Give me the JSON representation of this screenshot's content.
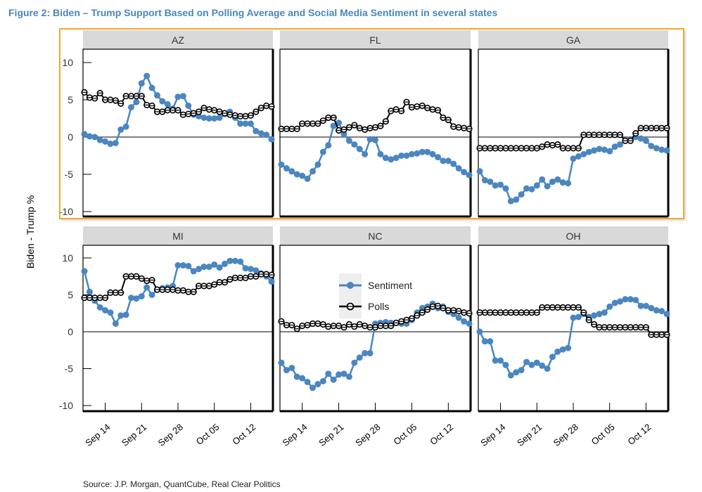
{
  "title": "Figure 2: Biden – Trump Support Based on Polling Average and Social Media Sentiment in several states",
  "source": "Source: J.P. Morgan, QuantCube, Real Clear Politics",
  "chart_data": {
    "type": "line",
    "title": "Figure 2: Biden – Trump Support Based on Polling Average and Social Media Sentiment in several states",
    "xlabel": "",
    "ylabel": "Biden - Trump %",
    "ylim": [
      -10,
      11
    ],
    "yticks": [
      "10",
      "5",
      "0",
      "-5",
      "-10"
    ],
    "ytick_values": [
      10,
      5,
      0,
      -5,
      -10
    ],
    "xtick_labels": [
      "Sep 14",
      "Sep 21",
      "Sep 28",
      "Oct 05",
      "Oct 12"
    ],
    "xtick_days": [
      4,
      11,
      18,
      25,
      32
    ],
    "x_day_range": [
      0,
      36
    ],
    "legend": {
      "placement": "NC panel upper-left",
      "entries": [
        "Sentiment",
        "Polls"
      ]
    },
    "colors": {
      "Sentiment": "#4a86c0",
      "Polls": "#000000",
      "highlight": "#f0a92a",
      "strip": "#d9d9d9",
      "title": "#4a86b8"
    },
    "panels": [
      {
        "name": "AZ",
        "series": [
          {
            "name": "Sentiment",
            "values": [
              0.4,
              0.1,
              0,
              -0.4,
              -0.6,
              -0.9,
              -0.8,
              1.0,
              1.4,
              4,
              4.7,
              7.2,
              8.2,
              6.6,
              5.6,
              4.8,
              4.4,
              3.8,
              5.4,
              5.5,
              4.2,
              3.0,
              2.8,
              2.6,
              2.5,
              2.5,
              2.6,
              3.1,
              3.4,
              2.6,
              1.8,
              1.8,
              1.8,
              0.8,
              0.5,
              0.3,
              -0.3
            ]
          },
          {
            "name": "Polls",
            "values": [
              6,
              5.3,
              5.2,
              5.9,
              5.0,
              5.0,
              4.9,
              4.5,
              5.5,
              5.5,
              5.5,
              5.5,
              4.3,
              4.2,
              3.4,
              3.4,
              3.6,
              3.6,
              3.6,
              3.0,
              3.1,
              3.2,
              3.4,
              3.9,
              3.7,
              3.6,
              3.4,
              3.2,
              3.0,
              2.9,
              2.8,
              2.8,
              2.9,
              3.4,
              3.9,
              4.2,
              4.1
            ]
          }
        ]
      },
      {
        "name": "FL",
        "series": [
          {
            "name": "Sentiment",
            "values": [
              -3.7,
              -4.2,
              -4.6,
              -5.0,
              -5.2,
              -5.6,
              -4.6,
              -3.7,
              -2.0,
              -1.1,
              1.5,
              1.9,
              0.4,
              -0.5,
              -1.0,
              -1.6,
              -2.3,
              -0.3,
              -0.4,
              -2.3,
              -2.8,
              -3.0,
              -2.8,
              -2.5,
              -2.5,
              -2.3,
              -2.2,
              -2.0,
              -2.0,
              -2.3,
              -2.7,
              -3.2,
              -3.2,
              -3.6,
              -4.2,
              -4.7,
              -5.1
            ]
          },
          {
            "name": "Polls",
            "values": [
              1.1,
              1.1,
              1.1,
              1.1,
              1.8,
              1.8,
              1.8,
              1.8,
              2.2,
              2.6,
              2.6,
              0.9,
              1.0,
              1.3,
              1.6,
              1.2,
              1.0,
              1.2,
              1.3,
              1.5,
              2.1,
              3.5,
              3.7,
              3.5,
              4.7,
              4.0,
              4.1,
              4.2,
              3.9,
              3.7,
              3.6,
              2.6,
              2.3,
              1.4,
              1.3,
              1.2,
              1.1
            ]
          }
        ]
      },
      {
        "name": "GA",
        "series": [
          {
            "name": "Sentiment",
            "values": [
              -4.6,
              -5.8,
              -6.0,
              -6.5,
              -6.4,
              -6.9,
              -8.6,
              -8.4,
              -7.7,
              -6.9,
              -7.0,
              -6.5,
              -5.7,
              -6.6,
              -6.0,
              -5.7,
              -6.1,
              -6.2,
              -2.9,
              -2.6,
              -2.3,
              -2.0,
              -1.8,
              -1.6,
              -1.7,
              -1.9,
              -1.3,
              -1.0,
              -0.5,
              -0.3,
              0.0,
              -0.2,
              -0.5,
              -1.2,
              -1.5,
              -1.7,
              -1.8
            ]
          },
          {
            "name": "Polls",
            "values": [
              -1.5,
              -1.5,
              -1.5,
              -1.5,
              -1.5,
              -1.5,
              -1.5,
              -1.5,
              -1.5,
              -1.5,
              -1.5,
              -1.5,
              -1.3,
              -1.0,
              -1.1,
              -1.0,
              -1.5,
              -1.5,
              -1.5,
              -1.5,
              0.3,
              0.3,
              0.3,
              0.3,
              0.3,
              0.3,
              0.3,
              0.3,
              -0.5,
              -0.5,
              0.5,
              1.2,
              1.2,
              1.2,
              1.2,
              1.2,
              1.2
            ]
          }
        ]
      },
      {
        "name": "MI",
        "series": [
          {
            "name": "Sentiment",
            "values": [
              8.2,
              5.4,
              4.2,
              3.3,
              2.9,
              2.6,
              1.1,
              2.2,
              2.3,
              4.6,
              4.5,
              4.8,
              6.0,
              5.0,
              5.7,
              5.9,
              6.0,
              6.2,
              9.0,
              9.0,
              8.9,
              8.2,
              8.5,
              8.8,
              8.8,
              9.1,
              8.7,
              9.2,
              9.6,
              9.6,
              9.5,
              8.6,
              8.5,
              8.3,
              7.9,
              7.5,
              6.8
            ]
          },
          {
            "name": "Polls",
            "values": [
              4.6,
              4.6,
              4.6,
              4.6,
              4.6,
              5.3,
              5.3,
              5.3,
              7.5,
              7.5,
              7.5,
              7.2,
              6.9,
              7.0,
              5.7,
              5.7,
              5.7,
              5.7,
              5.6,
              5.6,
              5.4,
              5.4,
              6.2,
              6.2,
              6.2,
              6.4,
              6.7,
              6.7,
              7.1,
              7.3,
              7.3,
              7.3,
              7.5,
              7.5,
              7.8,
              7.8,
              7.7
            ]
          }
        ]
      },
      {
        "name": "NC",
        "series": [
          {
            "name": "Sentiment",
            "values": [
              -4.2,
              -5.2,
              -4.9,
              -6.1,
              -6.3,
              -6.8,
              -7.6,
              -7.1,
              -6.7,
              -5.7,
              -6.5,
              -5.8,
              -5.7,
              -6.1,
              -4.2,
              -3.5,
              -2.9,
              -2.9,
              1.1,
              1.2,
              1.3,
              1.2,
              1.2,
              1.1,
              1.1,
              1.6,
              2.6,
              3.2,
              3.4,
              3.8,
              3.2,
              3.4,
              2.7,
              2.4,
              1.9,
              1.4,
              1.1
            ]
          },
          {
            "name": "Polls",
            "values": [
              1.4,
              0.9,
              0.9,
              0.4,
              0.8,
              0.9,
              1.1,
              1.1,
              1.0,
              0.7,
              0.8,
              0.8,
              0.6,
              1.0,
              0.7,
              1.0,
              0.8,
              0.6,
              0.6,
              0.8,
              0.8,
              0.8,
              1.2,
              1.4,
              1.6,
              1.8,
              2.2,
              2.6,
              3.0,
              3.4,
              3.5,
              3.2,
              2.9,
              2.9,
              2.8,
              2.6,
              2.5
            ]
          }
        ]
      },
      {
        "name": "OH",
        "series": [
          {
            "name": "Sentiment",
            "values": [
              0,
              -1.3,
              -1.3,
              -3.9,
              -3.9,
              -4.5,
              -5.9,
              -5.5,
              -5.2,
              -4.1,
              -4.5,
              -4.2,
              -4.6,
              -5.0,
              -3.4,
              -2.7,
              -2.4,
              -2.2,
              1.9,
              2.0,
              2.4,
              2.0,
              2.2,
              2.4,
              2.6,
              3.4,
              3.9,
              4.1,
              4.4,
              4.4,
              4.3,
              3.5,
              3.5,
              3.2,
              2.9,
              2.8,
              2.4
            ]
          },
          {
            "name": "Polls",
            "values": [
              2.6,
              2.6,
              2.6,
              2.6,
              2.6,
              2.6,
              2.6,
              2.6,
              2.6,
              2.6,
              2.6,
              2.6,
              3.3,
              3.3,
              3.3,
              3.3,
              3.3,
              3.3,
              3.3,
              3.3,
              2.6,
              1.6,
              1.0,
              0.6,
              0.6,
              0.6,
              0.6,
              0.6,
              0.6,
              0.6,
              0.6,
              0.6,
              0.6,
              -0.4,
              -0.4,
              -0.4,
              -0.4
            ]
          }
        ]
      }
    ]
  }
}
